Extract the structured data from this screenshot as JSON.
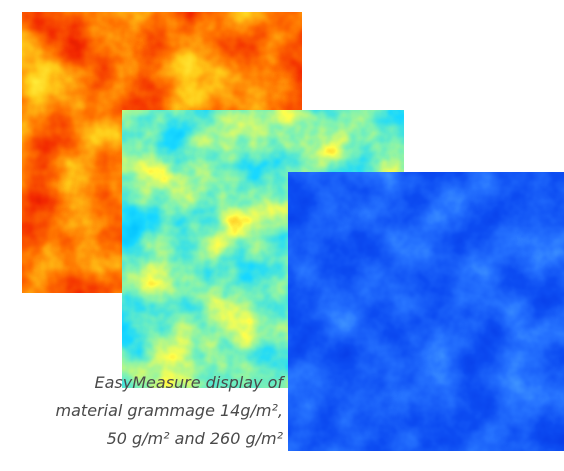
{
  "caption": {
    "lines": [
      "EasyMeasure display of",
      "material grammage 14g/m², ",
      "50 g/m² and 260 g/m²"
    ]
  }
}
